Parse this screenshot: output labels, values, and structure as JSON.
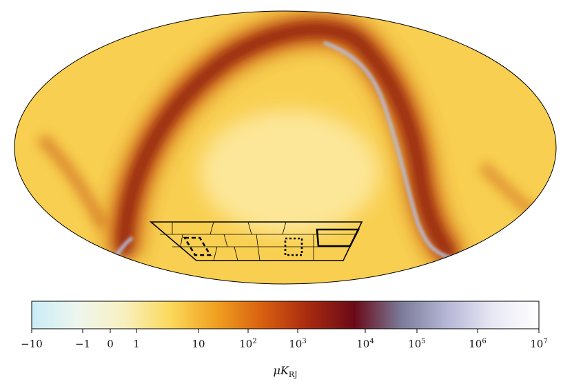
{
  "colorbar": {
    "ticks": [
      {
        "base": "−10",
        "exp": ""
      },
      {
        "base": "−1",
        "exp": ""
      },
      {
        "base": "0",
        "exp": ""
      },
      {
        "base": "1",
        "exp": ""
      },
      {
        "base": "10",
        "exp": ""
      },
      {
        "base": "10",
        "exp": "2"
      },
      {
        "base": "10",
        "exp": "3"
      },
      {
        "base": "10",
        "exp": "4"
      },
      {
        "base": "10",
        "exp": "5"
      },
      {
        "base": "10",
        "exp": "6"
      },
      {
        "base": "10",
        "exp": "7"
      }
    ],
    "unit_symbol": "μK",
    "unit_subscript": "RJ",
    "stops": [
      "#c9ecf7",
      "#eef6ee",
      "#f8f0c0",
      "#fbd95c",
      "#f0a020",
      "#d86010",
      "#a82a10",
      "#6a0a18",
      "#7a7a98",
      "#b6b6d6",
      "#e8e8f4",
      "#ffffff"
    ]
  },
  "map_colors": {
    "background": "#f8cf50",
    "bright": "#fde9a0",
    "dust": "#c24810",
    "dark_dust": "#8a1a0e",
    "saturated": "#b8bcd8"
  },
  "patch_outline_color": "#000000"
}
